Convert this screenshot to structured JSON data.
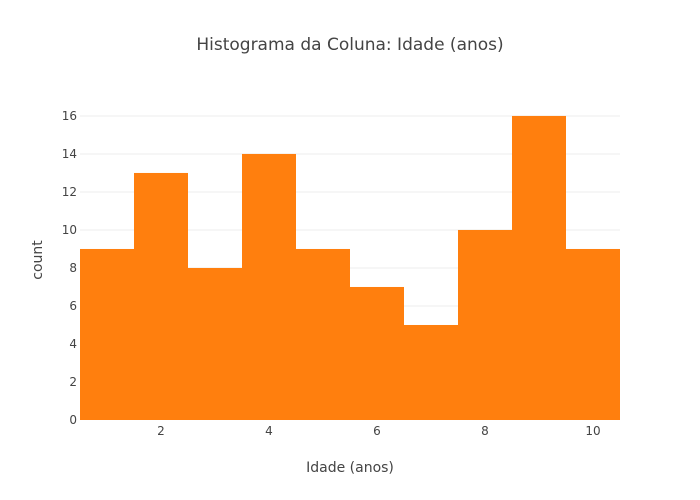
{
  "chart_data": {
    "type": "bar",
    "title": "Histograma da Coluna: Idade (anos)",
    "xlabel": "Idade (anos)",
    "ylabel": "count",
    "bins": [
      {
        "x0": 0.5,
        "x1": 1.5,
        "count": 9
      },
      {
        "x0": 1.5,
        "x1": 2.5,
        "count": 13
      },
      {
        "x0": 2.5,
        "x1": 3.5,
        "count": 8
      },
      {
        "x0": 3.5,
        "x1": 4.5,
        "count": 14
      },
      {
        "x0": 4.5,
        "x1": 5.5,
        "count": 9
      },
      {
        "x0": 5.5,
        "x1": 6.5,
        "count": 7
      },
      {
        "x0": 6.5,
        "x1": 7.5,
        "count": 5
      },
      {
        "x0": 7.5,
        "x1": 8.5,
        "count": 10
      },
      {
        "x0": 8.5,
        "x1": 9.5,
        "count": 16
      },
      {
        "x0": 9.5,
        "x1": 10.5,
        "count": 9
      }
    ],
    "xlim": [
      0.5,
      10.5
    ],
    "ylim": [
      0,
      16.84
    ],
    "xticks": [
      "2",
      "4",
      "6",
      "8",
      "10"
    ],
    "xtick_values": [
      2,
      4,
      6,
      8,
      10
    ],
    "yticks": [
      "0",
      "2",
      "4",
      "6",
      "8",
      "10",
      "12",
      "14",
      "16"
    ],
    "ytick_values": [
      0,
      2,
      4,
      6,
      8,
      10,
      12,
      14,
      16
    ],
    "bar_color": "#ff7f0e",
    "grid": true,
    "grid_color": "#eeeeee",
    "text_color": "#444444"
  }
}
